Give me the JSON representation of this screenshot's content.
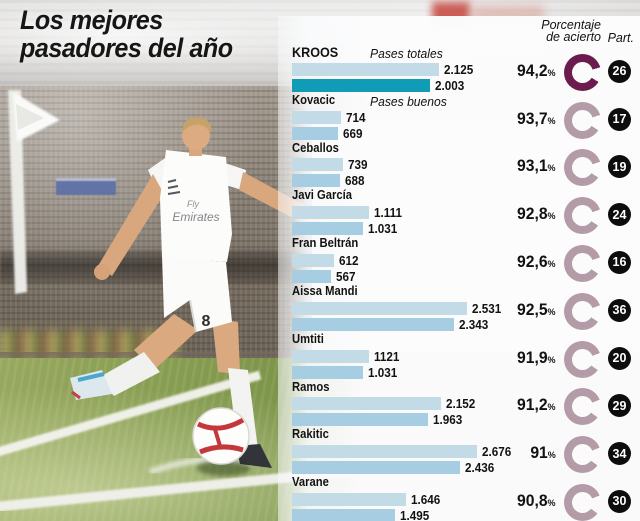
{
  "title": {
    "line1": "Los mejores",
    "line2": "pasadores del año"
  },
  "legend": {
    "total_label": "Pases totales",
    "good_label": "Pases buenos"
  },
  "columns": {
    "accuracy_header_line1": "Porcentaje",
    "accuracy_header_line2": "de acierto",
    "participation_header": "Part."
  },
  "percent_symbol": "%",
  "photo": {
    "jersey_sponsor_line1": "Fly",
    "jersey_sponsor_line2": "Emirates",
    "shorts_number": "8"
  },
  "colors": {
    "bar_total": "#c3dbe7",
    "bar_good": "#a6cde1",
    "bar_good_highlight": "#109cb7",
    "donut_dark": "#6b1b4d",
    "donut_light": "#b49ba8",
    "badge_bg": "#0d0d0d"
  },
  "chart_data": {
    "type": "bar",
    "orientation": "horizontal",
    "title": "Los mejores pasadores del año",
    "series_labels": [
      "Pases totales",
      "Pases buenos"
    ],
    "value_axis_max": 2676,
    "legend_position": "inline-first-rows",
    "grid": false,
    "players": [
      {
        "name": "KROOS",
        "total": 2125,
        "good": 2003,
        "total_label": "2.125",
        "good_label": "2.003",
        "accuracy": 94.2,
        "accuracy_display": "94,2",
        "matches": 26,
        "highlight": true
      },
      {
        "name": "Kovacic",
        "total": 714,
        "good": 669,
        "total_label": "714",
        "good_label": "669",
        "accuracy": 93.7,
        "accuracy_display": "93,7",
        "matches": 17,
        "highlight": false
      },
      {
        "name": "Ceballos",
        "total": 739,
        "good": 688,
        "total_label": "739",
        "good_label": "688",
        "accuracy": 93.1,
        "accuracy_display": "93,1",
        "matches": 19,
        "highlight": false
      },
      {
        "name": "Javi García",
        "total": 1111,
        "good": 1031,
        "total_label": "1.111",
        "good_label": "1.031",
        "accuracy": 92.8,
        "accuracy_display": "92,8",
        "matches": 24,
        "highlight": false
      },
      {
        "name": "Fran Beltrán",
        "total": 612,
        "good": 567,
        "total_label": "612",
        "good_label": "567",
        "accuracy": 92.6,
        "accuracy_display": "92,6",
        "matches": 16,
        "highlight": false
      },
      {
        "name": "Aissa Mandi",
        "total": 2531,
        "good": 2343,
        "total_label": "2.531",
        "good_label": "2.343",
        "accuracy": 92.5,
        "accuracy_display": "92,5",
        "matches": 36,
        "highlight": false
      },
      {
        "name": "Umtiti",
        "total": 1121,
        "good": 1031,
        "total_label": "1121",
        "good_label": "1.031",
        "accuracy": 91.9,
        "accuracy_display": "91,9",
        "matches": 20,
        "highlight": false
      },
      {
        "name": "Ramos",
        "total": 2152,
        "good": 1963,
        "total_label": "2.152",
        "good_label": "1.963",
        "accuracy": 91.2,
        "accuracy_display": "91,2",
        "matches": 29,
        "highlight": false
      },
      {
        "name": "Rakitic",
        "total": 2676,
        "good": 2436,
        "total_label": "2.676",
        "good_label": "2.436",
        "accuracy": 91.0,
        "accuracy_display": "91",
        "matches": 34,
        "highlight": false
      },
      {
        "name": "Varane",
        "total": 1646,
        "good": 1495,
        "total_label": "1.646",
        "good_label": "1.495",
        "accuracy": 90.8,
        "accuracy_display": "90,8",
        "matches": 30,
        "highlight": false
      }
    ]
  }
}
